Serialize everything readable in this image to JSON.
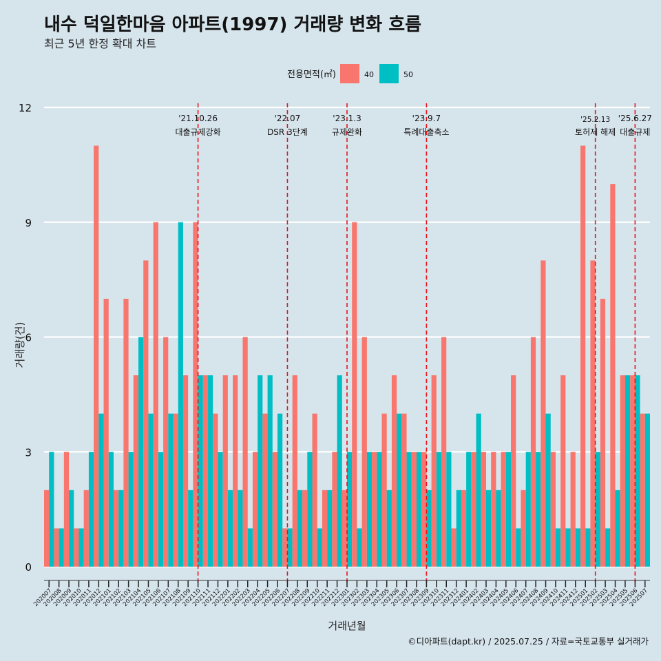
{
  "chart_data": {
    "type": "bar",
    "title": "내수 덕일한마음 아파트(1997) 거래량 변화 흐름",
    "subtitle": "최근 5년 한정 확대 차트",
    "xlabel": "거래년월",
    "ylabel": "거래량(건)",
    "ylim": [
      0,
      12
    ],
    "yticks": [
      0,
      3,
      6,
      9,
      12
    ],
    "legend_title": "전용면적(㎡)",
    "caption": "©디아파트(dapt.kr) / 2025.07.25 / 자료=국토교통부 실거래가",
    "categories": [
      "202007",
      "202008",
      "202009",
      "202010",
      "202011",
      "202012",
      "202101",
      "202102",
      "202103",
      "202104",
      "202105",
      "202106",
      "202107",
      "202108",
      "202109",
      "202110",
      "202111",
      "202112",
      "202201",
      "202202",
      "202203",
      "202204",
      "202205",
      "202206",
      "202207",
      "202208",
      "202209",
      "202210",
      "202211",
      "202212",
      "202301",
      "202302",
      "202303",
      "202304",
      "202305",
      "202306",
      "202307",
      "202308",
      "202309",
      "202310",
      "202311",
      "202312",
      "202401",
      "202402",
      "202403",
      "202404",
      "202405",
      "202406",
      "202407",
      "202408",
      "202409",
      "202410",
      "202411",
      "202412",
      "202501",
      "202502",
      "202503",
      "202504",
      "202505",
      "202506",
      "202507"
    ],
    "series": [
      {
        "name": "40",
        "color": "#f8766d",
        "values": [
          2,
          1,
          3,
          1,
          2,
          11,
          7,
          2,
          7,
          5,
          8,
          9,
          6,
          4,
          5,
          9,
          5,
          4,
          5,
          5,
          6,
          3,
          4,
          3,
          1,
          5,
          2,
          4,
          2,
          3,
          2,
          9,
          6,
          3,
          4,
          5,
          4,
          3,
          3,
          5,
          6,
          1,
          2,
          3,
          3,
          3,
          3,
          5,
          2,
          6,
          8,
          3,
          5,
          3,
          11,
          8,
          7,
          10,
          5,
          5,
          4
        ]
      },
      {
        "name": "50",
        "color": "#00bfc4",
        "values": [
          3,
          1,
          2,
          1,
          3,
          4,
          3,
          2,
          3,
          6,
          4,
          3,
          4,
          9,
          2,
          5,
          5,
          3,
          2,
          2,
          1,
          5,
          5,
          4,
          1,
          2,
          3,
          1,
          2,
          5,
          3,
          1,
          3,
          3,
          2,
          4,
          3,
          3,
          2,
          3,
          3,
          2,
          3,
          4,
          2,
          2,
          3,
          1,
          3,
          3,
          4,
          1,
          1,
          1,
          1,
          3,
          1,
          2,
          5,
          5,
          4
        ]
      }
    ],
    "events": [
      {
        "date": "'21.10.26",
        "label": "대출규제강화",
        "category_index": 15
      },
      {
        "date": "'22.07",
        "label": "DSR 3단계",
        "category_index": 24
      },
      {
        "date": "'23.1.3",
        "label": "규제완화",
        "category_index": 30
      },
      {
        "date": "'23.9.7",
        "label": "특례대출축소",
        "category_index": 38
      },
      {
        "date": "'25.2.13",
        "label": "토허제 해제",
        "category_index": 55
      },
      {
        "date": "'25.6.27",
        "label": "대출규제",
        "category_index": 59
      }
    ]
  }
}
